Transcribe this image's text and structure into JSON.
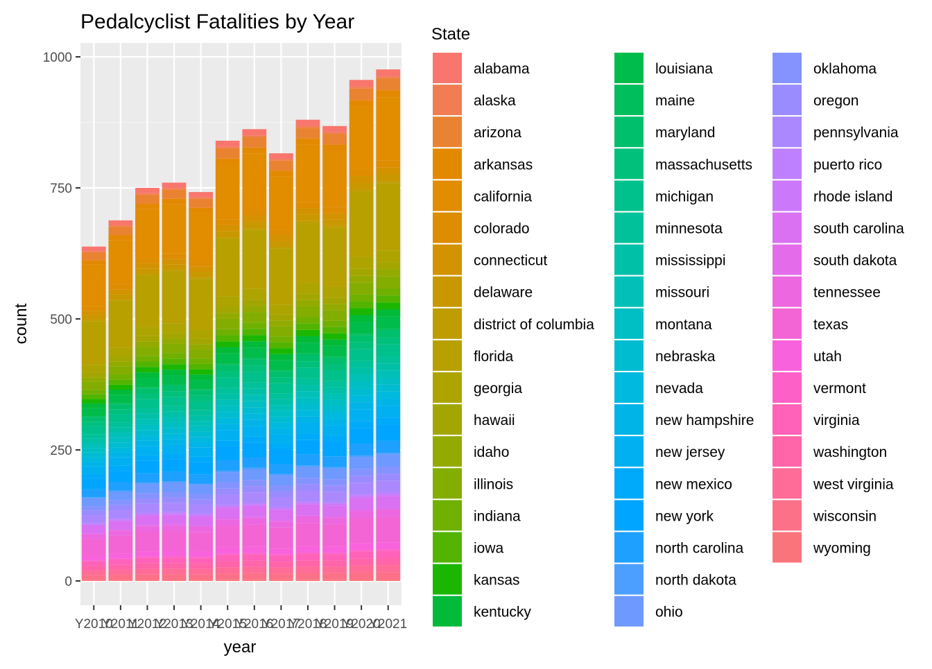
{
  "chart_data": {
    "type": "bar",
    "stacked": true,
    "title": "Pedalcyclist Fatalities by Year",
    "xlabel": "year",
    "ylabel": "count",
    "legend_title": "State",
    "legend_position": "right",
    "grid": true,
    "ylim": [
      0,
      1000
    ],
    "yticks": [
      0,
      250,
      500,
      750,
      1000
    ],
    "categories": [
      "Y2010",
      "Y2011",
      "Y2012",
      "Y2013",
      "Y2014",
      "Y2015",
      "Y2016",
      "Y2017",
      "Y2018",
      "Y2019",
      "Y2020",
      "Y2021"
    ],
    "totals": [
      638,
      688,
      750,
      760,
      742,
      840,
      862,
      816,
      880,
      868,
      956,
      976
    ],
    "series": [
      {
        "name": "alabama",
        "color": "#F8766D"
      },
      {
        "name": "alaska",
        "color": "#F27D52"
      },
      {
        "name": "arizona",
        "color": "#EA8331"
      },
      {
        "name": "arkansas",
        "color": "#E38900"
      },
      {
        "name": "california",
        "color": "#E28C00"
      },
      {
        "name": "colorado",
        "color": "#DE8C00"
      },
      {
        "name": "connecticut",
        "color": "#D39200"
      },
      {
        "name": "delaware",
        "color": "#C99800"
      },
      {
        "name": "district of columbia",
        "color": "#BF9C00"
      },
      {
        "name": "florida",
        "color": "#B8A000"
      },
      {
        "name": "georgia",
        "color": "#ADA400"
      },
      {
        "name": "hawaii",
        "color": "#A3A500"
      },
      {
        "name": "idaho",
        "color": "#93AA00"
      },
      {
        "name": "illinois",
        "color": "#83AD00"
      },
      {
        "name": "indiana",
        "color": "#6FB000"
      },
      {
        "name": "iowa",
        "color": "#52B400"
      },
      {
        "name": "kansas",
        "color": "#1BB700"
      },
      {
        "name": "kentucky",
        "color": "#00BA38"
      },
      {
        "name": "louisiana",
        "color": "#00BC4A"
      },
      {
        "name": "maine",
        "color": "#00BE5C"
      },
      {
        "name": "maryland",
        "color": "#00BF6C"
      },
      {
        "name": "massachusetts",
        "color": "#00C07B"
      },
      {
        "name": "michigan",
        "color": "#00C08B"
      },
      {
        "name": "minnesota",
        "color": "#00C19A"
      },
      {
        "name": "mississippi",
        "color": "#00C0A8"
      },
      {
        "name": "missouri",
        "color": "#00C0B8"
      },
      {
        "name": "montana",
        "color": "#00BFC4"
      },
      {
        "name": "nebraska",
        "color": "#00BCD1"
      },
      {
        "name": "nevada",
        "color": "#00B9DE"
      },
      {
        "name": "new hampshire",
        "color": "#00B4E8"
      },
      {
        "name": "new jersey",
        "color": "#00B0F0"
      },
      {
        "name": "new mexico",
        "color": "#00AAFA"
      },
      {
        "name": "new york",
        "color": "#00A5FF"
      },
      {
        "name": "north carolina",
        "color": "#1DA0FF"
      },
      {
        "name": "north dakota",
        "color": "#4D9FFF"
      },
      {
        "name": "ohio",
        "color": "#6E99FF"
      },
      {
        "name": "oklahoma",
        "color": "#8593FF"
      },
      {
        "name": "oregon",
        "color": "#9A8CFF"
      },
      {
        "name": "pennsylvania",
        "color": "#AC88FF"
      },
      {
        "name": "puerto rico",
        "color": "#BE80FF"
      },
      {
        "name": "rhode island",
        "color": "#CC78FA"
      },
      {
        "name": "south carolina",
        "color": "#D971F2"
      },
      {
        "name": "south dakota",
        "color": "#E46BEA"
      },
      {
        "name": "tennessee",
        "color": "#EC67E0"
      },
      {
        "name": "texas",
        "color": "#F365D5"
      },
      {
        "name": "utah",
        "color": "#F962DD"
      },
      {
        "name": "vermont",
        "color": "#FD61C7"
      },
      {
        "name": "virginia",
        "color": "#FF62B8"
      },
      {
        "name": "washington",
        "color": "#FF65A8"
      },
      {
        "name": "west virginia",
        "color": "#FF6C97"
      },
      {
        "name": "wisconsin",
        "color": "#FC7188"
      },
      {
        "name": "wyoming",
        "color": "#FA757B"
      }
    ]
  }
}
